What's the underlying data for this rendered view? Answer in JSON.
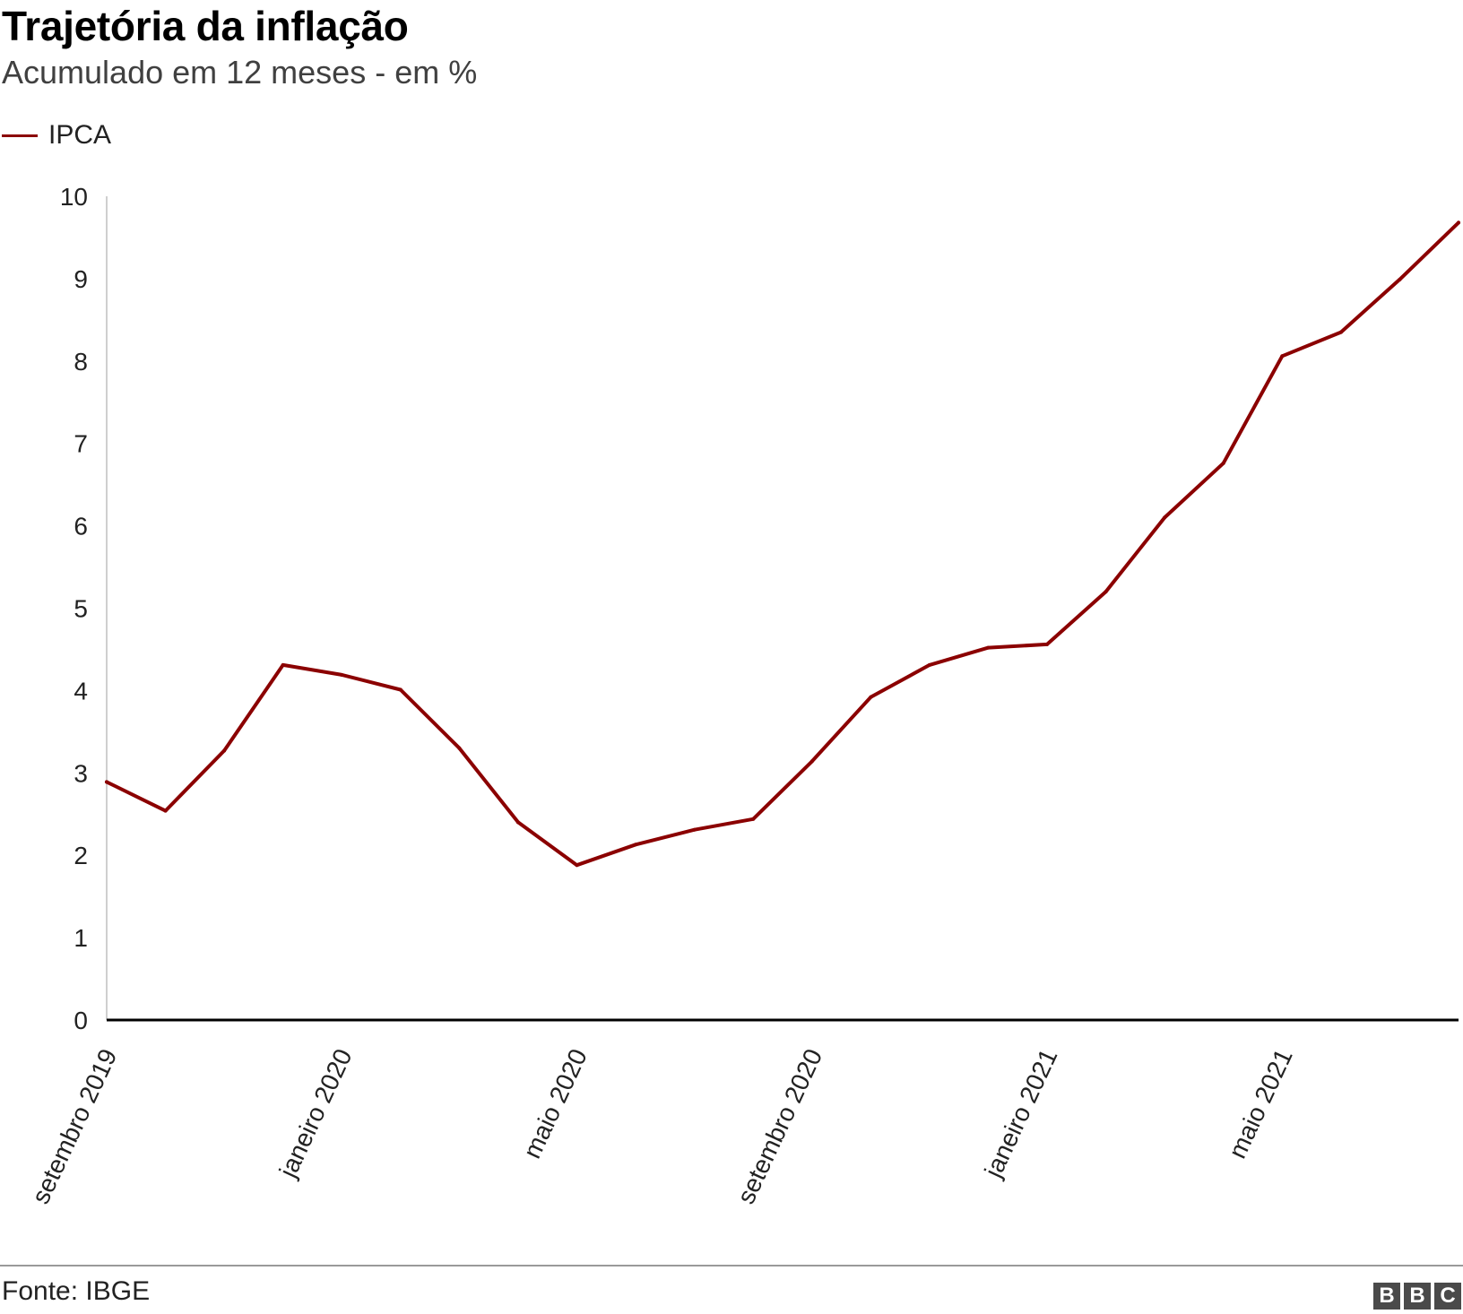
{
  "title": "Trajetória da inflação",
  "subtitle": "Acumulado em 12 meses - em %",
  "legend": {
    "label": "IPCA",
    "color": "#8b0000"
  },
  "source": "Fonte: IBGE",
  "logo": {
    "text": "BBC",
    "letters": [
      "B",
      "B",
      "C"
    ]
  },
  "chart_data": {
    "type": "line",
    "ylim": [
      0,
      10
    ],
    "yticks": [
      "0",
      "1",
      "2",
      "3",
      "4",
      "5",
      "6",
      "7",
      "8",
      "9",
      "10"
    ],
    "x_tick_labels": [
      "setembro 2019",
      "janeiro 2020",
      "maio 2020",
      "setembro 2020",
      "janeiro 2021",
      "maio 2021"
    ],
    "x": [
      "2019-09",
      "2019-10",
      "2019-11",
      "2019-12",
      "2020-01",
      "2020-02",
      "2020-03",
      "2020-04",
      "2020-05",
      "2020-06",
      "2020-07",
      "2020-08",
      "2020-09",
      "2020-10",
      "2020-11",
      "2020-12",
      "2021-01",
      "2021-02",
      "2021-03",
      "2021-04",
      "2021-05",
      "2021-06",
      "2021-07",
      "2021-08"
    ],
    "series": [
      {
        "name": "IPCA",
        "color": "#8b0000",
        "values": [
          2.89,
          2.54,
          3.27,
          4.31,
          4.19,
          4.01,
          3.3,
          2.4,
          1.88,
          2.13,
          2.31,
          2.44,
          3.14,
          3.92,
          4.31,
          4.52,
          4.56,
          5.2,
          6.1,
          6.76,
          8.06,
          8.35,
          8.99,
          9.68
        ]
      }
    ]
  }
}
